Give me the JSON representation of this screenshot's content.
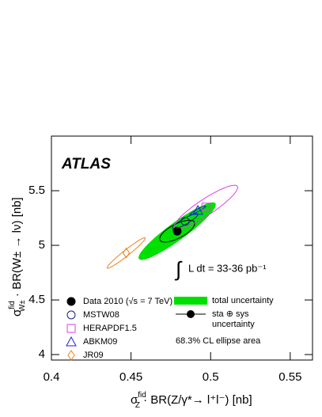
{
  "chart_data": {
    "type": "ellipse-scatter",
    "brand": "ATLAS",
    "luminosity": [
      "∫",
      "L dt = 33-36 pb⁻¹"
    ],
    "x_label": {
      "symbol": "σ",
      "sup": "fid",
      "sub": "Z",
      "text": " · BR(Z/γ*→ l⁺l⁻) [nb]"
    },
    "y_label": {
      "symbol": "σ",
      "sup": "fid",
      "sub": "W±",
      "text": " · BR(W± → lν) [nb]"
    },
    "xlim": [
      0.4,
      0.564
    ],
    "ylim": [
      3.95,
      6.0
    ],
    "xticks": [
      0.4,
      0.45,
      0.5,
      0.55
    ],
    "yticks": [
      4,
      4.5,
      5,
      5.5
    ],
    "series": [
      {
        "name": "Data 2010 (√s = 7 TeV)",
        "color": "#000000",
        "marker": "dot",
        "x": 0.479,
        "y": 5.13
      },
      {
        "name": "MSTW08",
        "color": "#1c1c8c",
        "marker": "circle",
        "x": 0.484,
        "y": 5.22,
        "sx": 0.008,
        "sy": 0.07,
        "rho": 0.9
      },
      {
        "name": "HERAPDF1.5",
        "color": "#e040e0",
        "marker": "square",
        "x": 0.497,
        "y": 5.35,
        "sx": 0.02,
        "sy": 0.2,
        "rho": 0.9
      },
      {
        "name": "ABKM09",
        "color": "#2020e0",
        "marker": "triangle",
        "x": 0.492,
        "y": 5.32,
        "sx": 0.005,
        "sy": 0.04,
        "rho": 0.95
      },
      {
        "name": "JR09",
        "color": "#f08020",
        "marker": "diamond",
        "x": 0.447,
        "y": 4.93,
        "sx": 0.012,
        "sy": 0.14,
        "rho": 0.97
      }
    ],
    "data_ellipses": [
      {
        "name": [
          "total uncertainty"
        ],
        "color": "#00e000",
        "fill": true,
        "sx": 0.024,
        "sy": 0.26,
        "rho": 0.93
      },
      {
        "name": [
          "sta ⊕ sys",
          "uncertainty"
        ],
        "color": "#000000",
        "fill": false,
        "sx": 0.011,
        "sy": 0.1,
        "rho": 0.7
      }
    ],
    "note": "68.3% CL ellipse area"
  }
}
